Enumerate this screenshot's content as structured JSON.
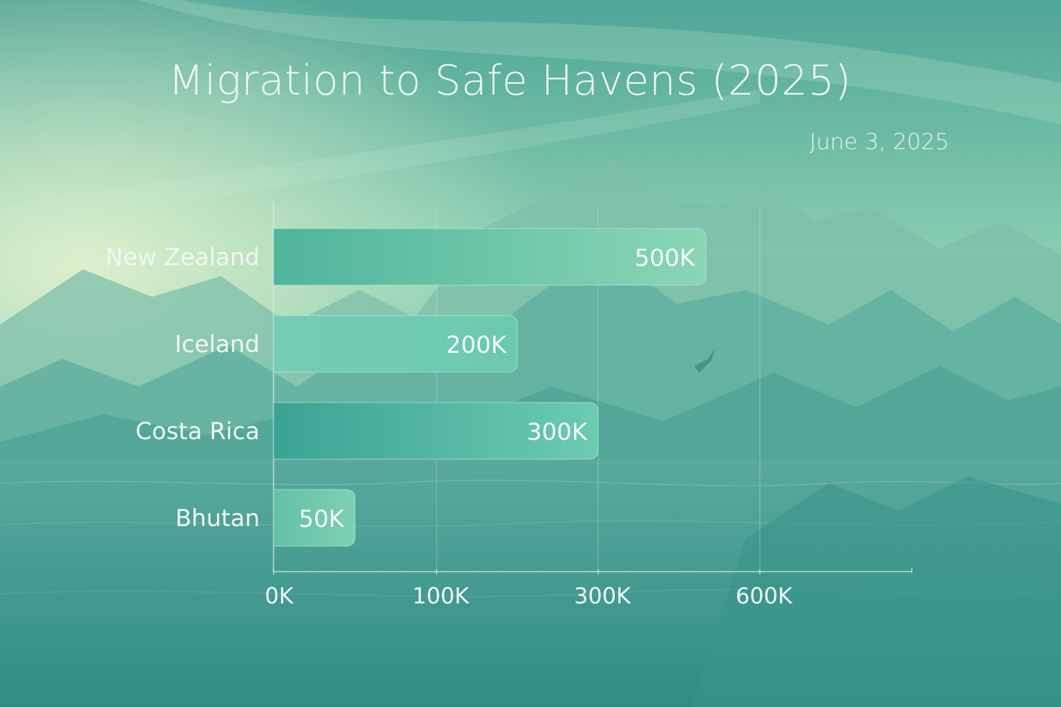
{
  "colors": {
    "text": "#eef8f2",
    "bar_light": "#8ad6b4",
    "bar_mid": "#6cc9b0",
    "bar_dark": "#3aa394",
    "axis": "#d6efe6"
  },
  "chart_data": {
    "type": "bar",
    "orientation": "horizontal",
    "title": "Migration to Safe Havens (2025)",
    "date": "June 3, 2025",
    "categories": [
      "New Zealand",
      "Iceland",
      "Costa Rica",
      "Bhutan"
    ],
    "values": [
      500000,
      200000,
      300000,
      50000
    ],
    "data_labels": [
      "500K",
      "200K",
      "300K",
      "50K"
    ],
    "x_ticks": [
      {
        "label": "0K",
        "value": 0
      },
      {
        "label": "100K",
        "value": 100000
      },
      {
        "label": "300K",
        "value": 300000
      },
      {
        "label": "600K",
        "value": 600000
      }
    ],
    "xlabel": "",
    "ylabel": "",
    "grid": true,
    "legend": "none"
  }
}
